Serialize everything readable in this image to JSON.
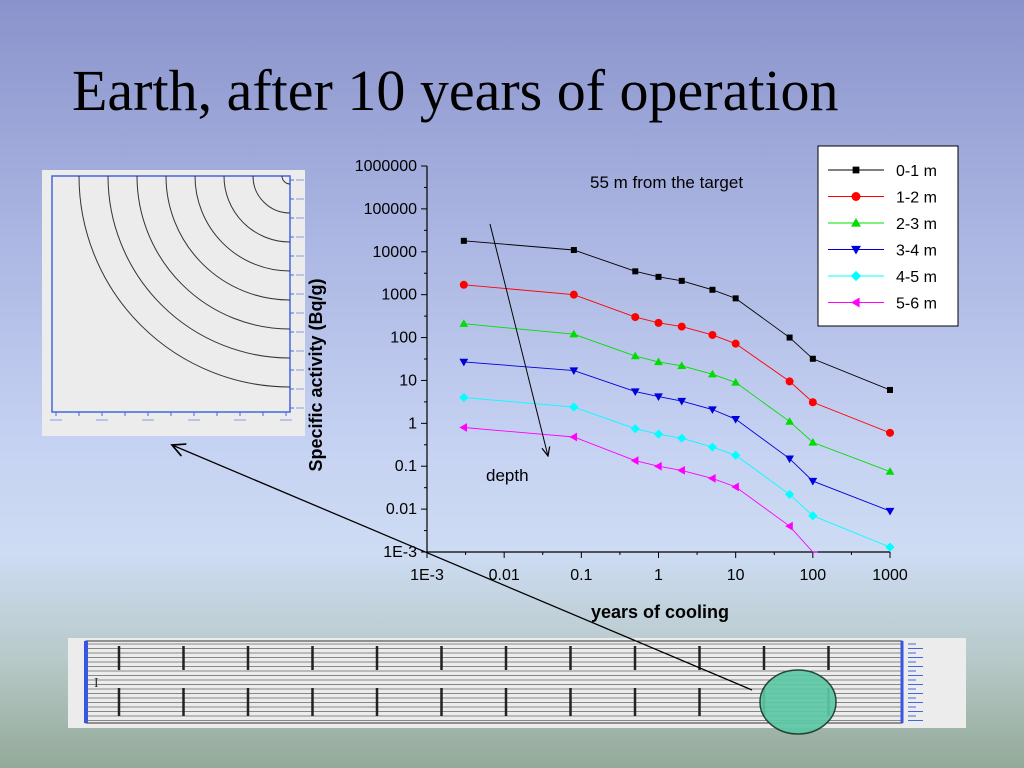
{
  "slide": {
    "title": "Earth, after 10 years of operation"
  },
  "annotations": {
    "subtitle": "55 m from the target",
    "depth_label": "depth"
  },
  "chart_data": {
    "type": "line",
    "xlabel": "years of cooling",
    "ylabel": "Specific activity (Bq/g)",
    "x_scale": "log",
    "y_scale": "log",
    "xlim": [
      0.001,
      1000
    ],
    "ylim": [
      0.001,
      1000000
    ],
    "x_ticks": [
      "1E-3",
      "0.01",
      "0.1",
      "1",
      "10",
      "100",
      "1000"
    ],
    "y_ticks": [
      "1E-3",
      "0.01",
      "0.1",
      "1",
      "10",
      "100",
      "1000",
      "10000",
      "100000",
      "1000000"
    ],
    "legend_position": "top-right",
    "x": [
      0.003,
      0.08,
      0.5,
      1,
      2,
      5,
      10,
      50,
      100,
      1000
    ],
    "series": [
      {
        "name": "0-1 m",
        "color": "#000000",
        "marker": "square",
        "values": [
          18000,
          11000,
          3500,
          2600,
          2100,
          1300,
          820,
          100,
          32,
          6
        ]
      },
      {
        "name": "1-2 m",
        "color": "#ff0000",
        "marker": "circle",
        "values": [
          1700,
          1000,
          300,
          220,
          180,
          115,
          72,
          9.5,
          3.1,
          0.6
        ]
      },
      {
        "name": "2-3 m",
        "color": "#00dd00",
        "marker": "triangle-up",
        "values": [
          210,
          120,
          37,
          27,
          22,
          14,
          9,
          1.1,
          0.36,
          0.075
        ]
      },
      {
        "name": "3-4 m",
        "color": "#0000dd",
        "marker": "triangle-down",
        "values": [
          27,
          17,
          5.5,
          4.2,
          3.3,
          2.1,
          1.25,
          0.15,
          0.045,
          0.009
        ]
      },
      {
        "name": "4-5 m",
        "color": "#00ffff",
        "marker": "diamond",
        "values": [
          4,
          2.4,
          0.75,
          0.56,
          0.45,
          0.28,
          0.18,
          0.022,
          0.007,
          0.0013
        ]
      },
      {
        "name": "5-6 m",
        "color": "#ff00ff",
        "marker": "triangle-left",
        "values": [
          0.8,
          0.48,
          0.135,
          0.1,
          0.08,
          0.052,
          0.033,
          0.004,
          0.0009,
          null
        ]
      }
    ]
  }
}
